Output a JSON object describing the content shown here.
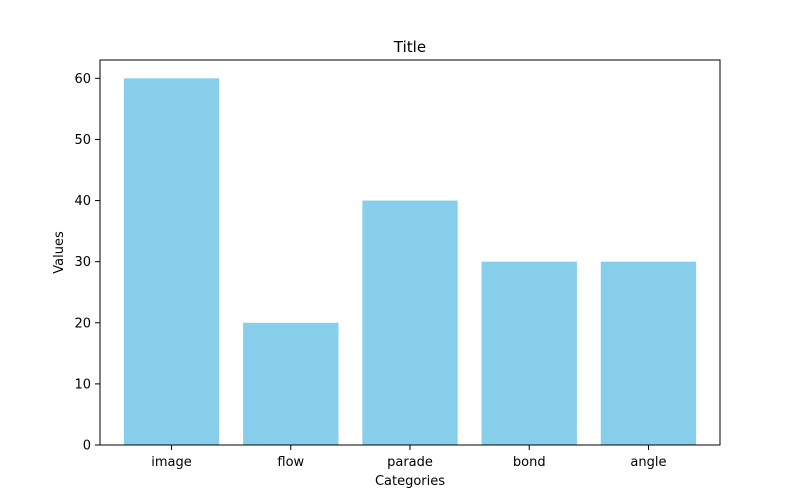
{
  "chart_data": {
    "type": "bar",
    "title": "Title",
    "xlabel": "Categories",
    "ylabel": "Values",
    "categories": [
      "image",
      "flow",
      "parade",
      "bond",
      "angle"
    ],
    "values": [
      60,
      20,
      40,
      30,
      30
    ],
    "ylim": [
      0,
      63
    ],
    "yticks": [
      0,
      10,
      20,
      30,
      40,
      50,
      60
    ],
    "bar_color": "#87CEEB",
    "grid": false,
    "legend": "none"
  }
}
